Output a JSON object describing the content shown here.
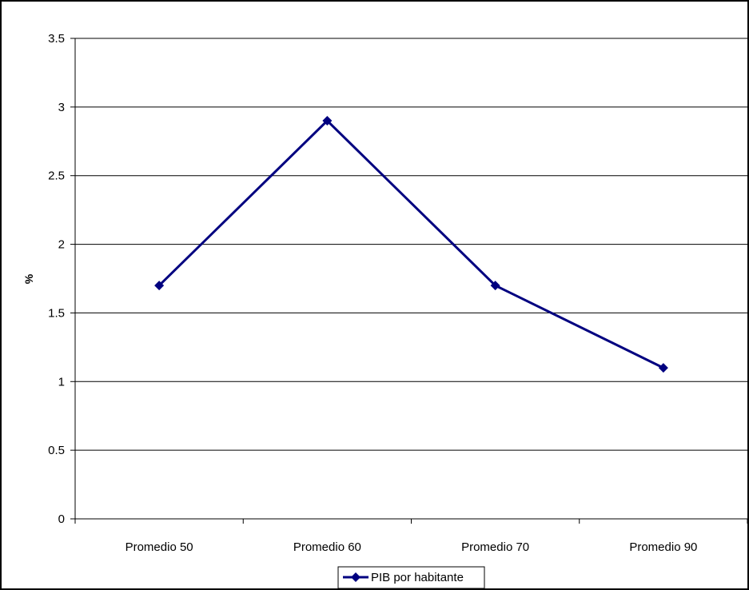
{
  "chart_data": {
    "type": "line",
    "title": "",
    "xlabel": "",
    "ylabel": "%",
    "categories": [
      "Promedio 50",
      "Promedio 60",
      "Promedio 70",
      "Promedio 90"
    ],
    "series": [
      {
        "name": "PIB por habitante",
        "values": [
          1.7,
          2.9,
          1.7,
          1.1
        ],
        "color": "#000080",
        "marker": "diamond"
      }
    ],
    "ylim": [
      0,
      3.5
    ],
    "yticks": [
      0,
      0.5,
      1,
      1.5,
      2,
      2.5,
      3,
      3.5
    ],
    "ytick_labels": [
      "0",
      "0.5",
      "1",
      "1.5",
      "2",
      "2.5",
      "3",
      "3.5"
    ],
    "grid": true,
    "grid_axis": "y",
    "legend_position": "bottom-center"
  }
}
